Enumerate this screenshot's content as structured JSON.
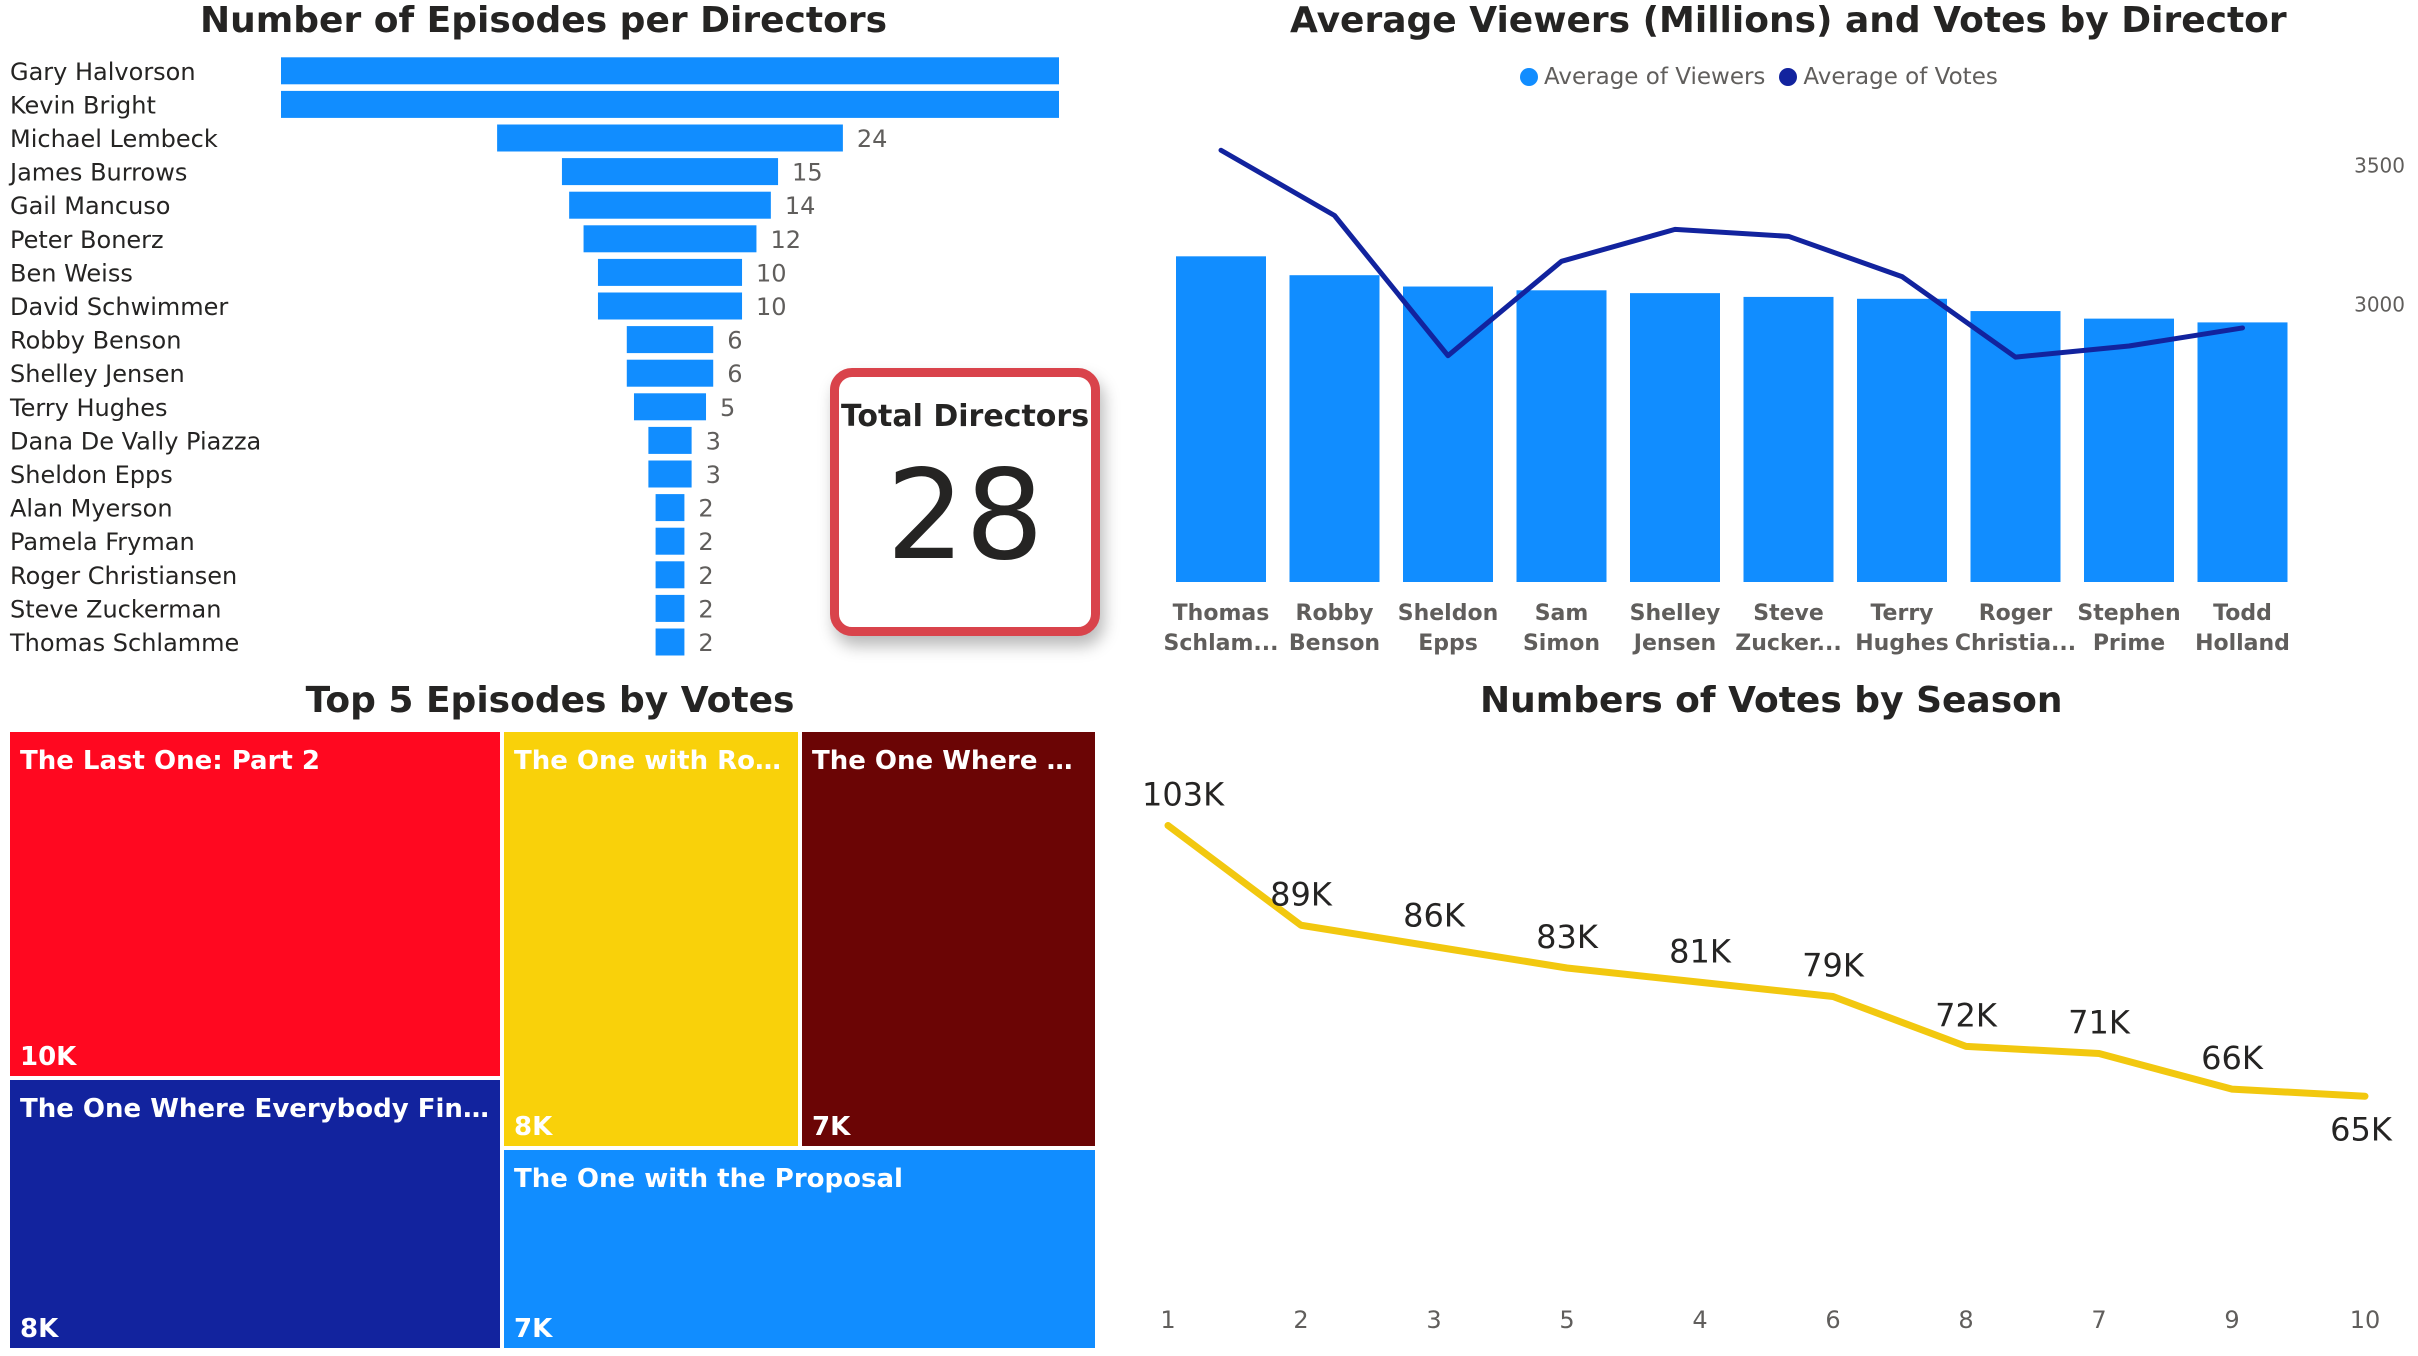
{
  "panels": {
    "episodes_title": "Number of Episodes per Directors",
    "viewers_title": "Average Viewers (Millions) and Votes by Director",
    "top5_title": "Top 5 Episodes by Votes",
    "season_title": "Numbers of Votes by Season"
  },
  "legend": {
    "items": [
      {
        "label": "Average of Viewers",
        "color": "#118dff"
      },
      {
        "label": "Average of Votes",
        "color": "#12239e"
      }
    ]
  },
  "kpi": {
    "label": "Total Directors",
    "value": "28"
  },
  "colors": {
    "bar_blue": "#118dff",
    "line_navy": "#12239e",
    "season_line": "#f2c80f",
    "kpi_border": "#d9434b"
  },
  "chart_data": [
    {
      "id": "episodes",
      "type": "bar",
      "orientation": "horizontal",
      "title": "Number of Episodes per Directors",
      "categories": [
        "Gary Halvorson",
        "Kevin Bright",
        "Michael Lembeck",
        "James Burrows",
        "Gail Mancuso",
        "Peter Bonerz",
        "Ben Weiss",
        "David Schwimmer",
        "Robby Benson",
        "Shelley Jensen",
        "Terry Hughes",
        "Dana De Vally Piazza",
        "Sheldon Epps",
        "Alan Myerson",
        "Pamela Fryman",
        "Roger Christiansen",
        "Steve Zuckerman",
        "Thomas Schlamme"
      ],
      "values": [
        54,
        54,
        24,
        15,
        14,
        12,
        10,
        10,
        6,
        6,
        5,
        3,
        3,
        2,
        2,
        2,
        2,
        2
      ],
      "value_labels": [
        "",
        "",
        "24",
        "15",
        "14",
        "12",
        "10",
        "10",
        "6",
        "6",
        "5",
        "3",
        "3",
        "2",
        "2",
        "2",
        "2",
        "2"
      ],
      "layout": "funnel"
    },
    {
      "id": "viewers_votes",
      "type": "bar",
      "combo": "bar+line",
      "title": "Average Viewers (Millions) and Votes by Director",
      "categories": [
        [
          "Thomas",
          "Schlam..."
        ],
        [
          "Robby",
          "Benson"
        ],
        [
          "Sheldon",
          "Epps"
        ],
        [
          "Sam",
          "Simon"
        ],
        [
          "Shelley",
          "Jensen"
        ],
        [
          "Steve",
          "Zucker..."
        ],
        [
          "Terry",
          "Hughes"
        ],
        [
          "Roger",
          "Christia..."
        ],
        [
          "Stephen",
          "Prime"
        ],
        [
          "Todd",
          "Holland"
        ]
      ],
      "series": [
        {
          "name": "Average of Viewers",
          "type": "bar",
          "values": [
            34.5,
            32.5,
            31.3,
            30.9,
            30.6,
            30.2,
            30.0,
            28.7,
            27.9,
            27.5
          ]
        },
        {
          "name": "Average of Votes",
          "type": "line",
          "axis": "right",
          "values": [
            3555,
            3320,
            2815,
            3155,
            3270,
            3245,
            3100,
            2810,
            2850,
            2915
          ]
        }
      ],
      "y_right_ticks": [
        "3500",
        "3000"
      ],
      "y_right_range": [
        2000,
        3700
      ],
      "y_left_range": [
        0,
        50
      ],
      "legend_position": "top-center"
    },
    {
      "id": "top5",
      "type": "treemap",
      "title": "Top 5 Episodes by Votes",
      "items": [
        {
          "name": "The Last One: Part 2",
          "value": "10K",
          "color": "#ff0820",
          "text_color": "#ffffff"
        },
        {
          "name": "The One Where Everybody Finds ...",
          "value": "8K",
          "color": "#12239e",
          "text_color": "#ffffff"
        },
        {
          "name": "The One with Ross'...",
          "value": "8K",
          "color": "#f9d10a",
          "text_color": "#ffffff"
        },
        {
          "name": "The One Where M...",
          "value": "7K",
          "color": "#6b0505",
          "text_color": "#ffffff"
        },
        {
          "name": "The One with the Proposal",
          "value": "7K",
          "color": "#118dff",
          "text_color": "#ffffff"
        }
      ]
    },
    {
      "id": "season_votes",
      "type": "line",
      "title": "Numbers of Votes by Season",
      "categories": [
        "1",
        "2",
        "3",
        "5",
        "4",
        "6",
        "8",
        "7",
        "9",
        "10"
      ],
      "values": [
        103,
        89,
        86,
        83,
        81,
        79,
        72,
        71,
        66,
        65
      ],
      "value_labels": [
        "103K",
        "89K",
        "86K",
        "83K",
        "81K",
        "79K",
        "72K",
        "71K",
        "66K",
        "65K"
      ],
      "value_unit": "K"
    }
  ]
}
